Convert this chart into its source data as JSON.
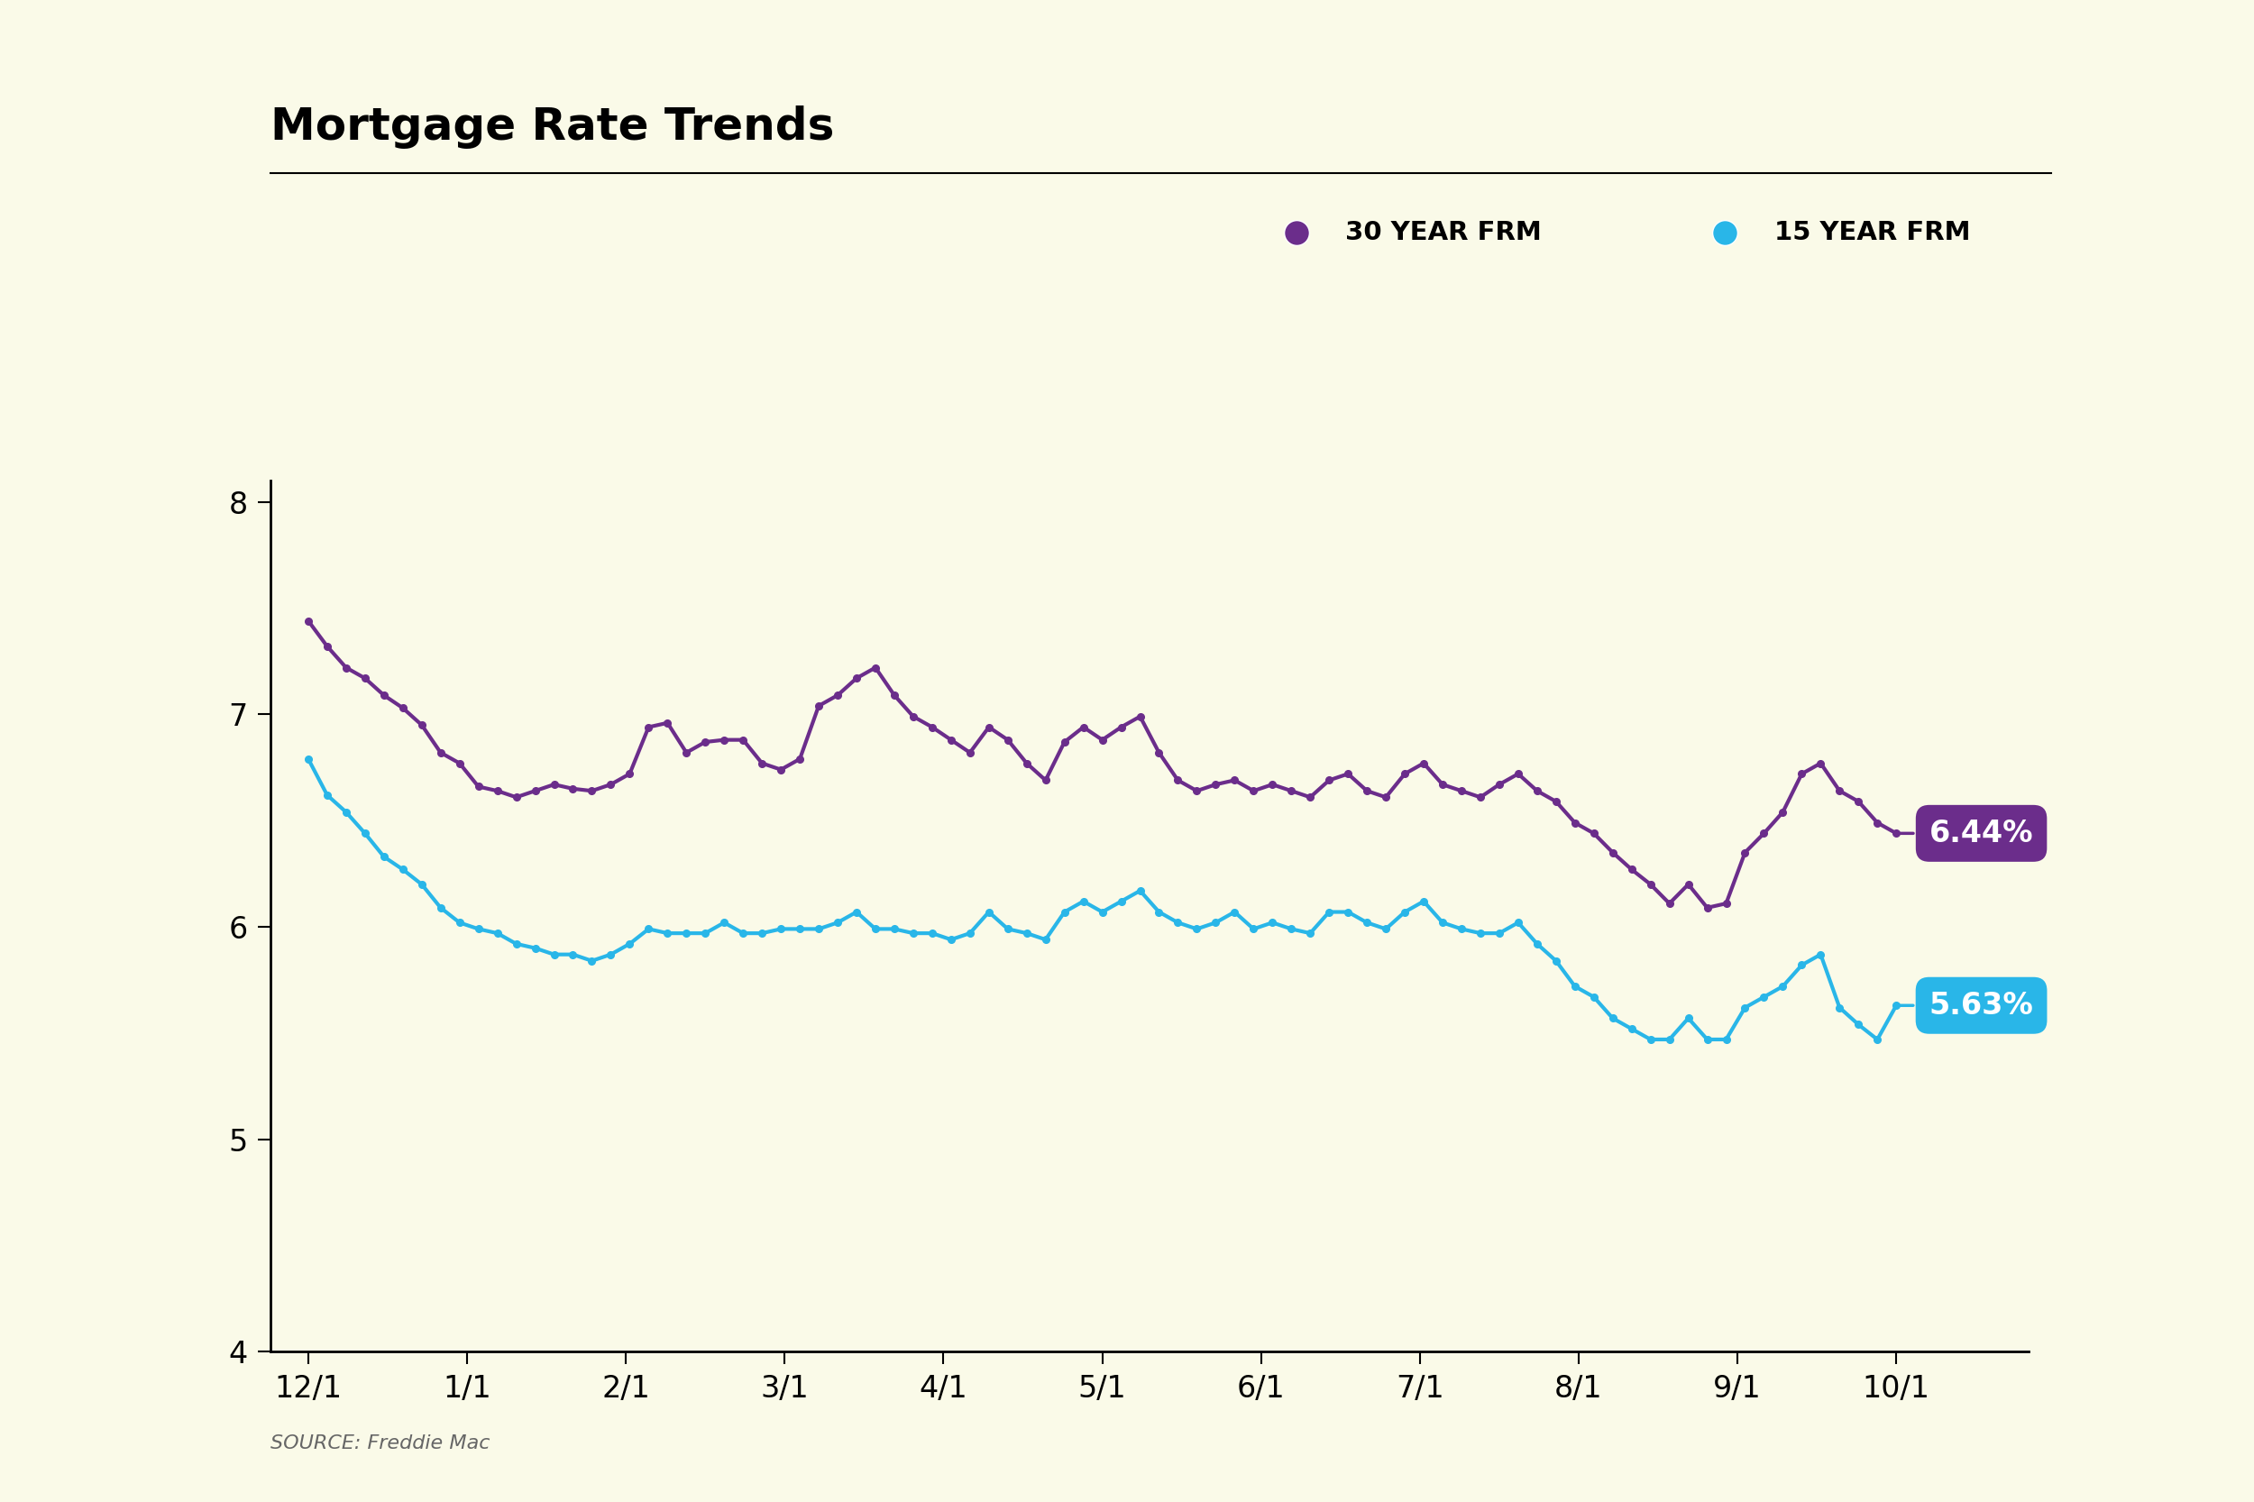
{
  "title": "Mortgage Rate Trends",
  "source": "SOURCE: Freddie Mac",
  "background_color": "#FAFAE8",
  "title_fontsize": 36,
  "line_30yr_color": "#6B2D8B",
  "line_15yr_color": "#29B6E8",
  "label_30yr": "30 YEAR FRM",
  "label_15yr": "15 YEAR FRM",
  "label_30yr_value": "6.44%",
  "label_15yr_value": "5.63%",
  "ylim": [
    4,
    8.1
  ],
  "yticks": [
    4,
    5,
    6,
    7,
    8
  ],
  "x_tick_labels": [
    "12/1",
    "1/1",
    "2/1",
    "3/1",
    "4/1",
    "5/1",
    "6/1",
    "7/1",
    "8/1",
    "9/1",
    "10/1"
  ],
  "dates_30yr": [
    7.44,
    7.32,
    7.22,
    7.17,
    7.09,
    7.03,
    6.95,
    6.82,
    6.77,
    6.66,
    6.64,
    6.61,
    6.64,
    6.67,
    6.65,
    6.64,
    6.67,
    6.72,
    6.94,
    6.96,
    6.82,
    6.87,
    6.88,
    6.88,
    6.77,
    6.74,
    6.79,
    7.04,
    7.09,
    7.17,
    7.22,
    7.09,
    6.99,
    6.94,
    6.88,
    6.82,
    6.94,
    6.88,
    6.77,
    6.69,
    6.87,
    6.94,
    6.88,
    6.94,
    6.99,
    6.82,
    6.69,
    6.64,
    6.67,
    6.69,
    6.64,
    6.67,
    6.64,
    6.61,
    6.69,
    6.72,
    6.64,
    6.61,
    6.72,
    6.77,
    6.67,
    6.64,
    6.61,
    6.67,
    6.72,
    6.64,
    6.59,
    6.49,
    6.44,
    6.35,
    6.27,
    6.2,
    6.11,
    6.2,
    6.09,
    6.11,
    6.35,
    6.44,
    6.54,
    6.72,
    6.77,
    6.64,
    6.59,
    6.49,
    6.44
  ],
  "dates_15yr": [
    6.79,
    6.62,
    6.54,
    6.44,
    6.33,
    6.27,
    6.2,
    6.09,
    6.02,
    5.99,
    5.97,
    5.92,
    5.9,
    5.87,
    5.87,
    5.84,
    5.87,
    5.92,
    5.99,
    5.97,
    5.97,
    5.97,
    6.02,
    5.97,
    5.97,
    5.99,
    5.99,
    5.99,
    6.02,
    6.07,
    5.99,
    5.99,
    5.97,
    5.97,
    5.94,
    5.97,
    6.07,
    5.99,
    5.97,
    5.94,
    6.07,
    6.12,
    6.07,
    6.12,
    6.17,
    6.07,
    6.02,
    5.99,
    6.02,
    6.07,
    5.99,
    6.02,
    5.99,
    5.97,
    6.07,
    6.07,
    6.02,
    5.99,
    6.07,
    6.12,
    6.02,
    5.99,
    5.97,
    5.97,
    6.02,
    5.92,
    5.84,
    5.72,
    5.67,
    5.57,
    5.52,
    5.47,
    5.47,
    5.57,
    5.47,
    5.47,
    5.62,
    5.67,
    5.72,
    5.82,
    5.87,
    5.62,
    5.54,
    5.47,
    5.63
  ]
}
